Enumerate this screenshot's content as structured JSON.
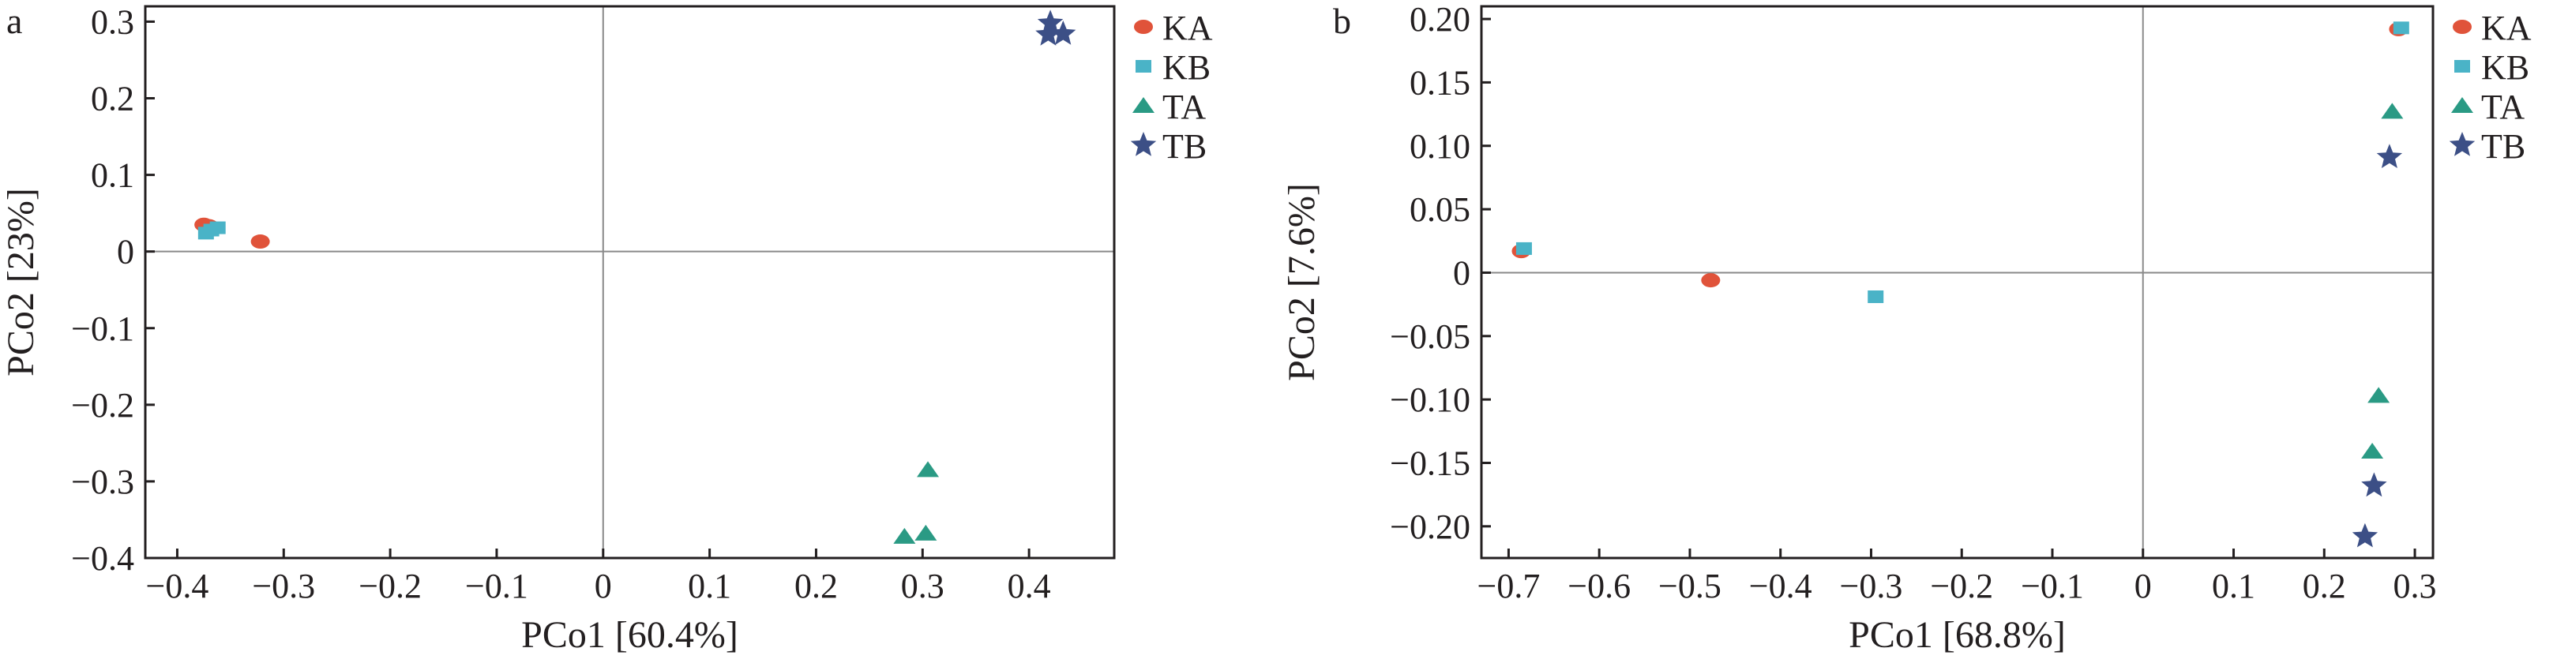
{
  "chart_data": [
    {
      "type": "scatter",
      "panel_label": "a",
      "xlabel": "PCo1 [60.4%]",
      "ylabel": "PCo2 [23%]",
      "xlim": [
        -0.43,
        0.48
      ],
      "ylim": [
        -0.4,
        0.32
      ],
      "xticks": [
        -0.4,
        -0.3,
        -0.2,
        -0.1,
        0,
        0.1,
        0.2,
        0.3,
        0.4
      ],
      "xtick_labels": [
        "-0.4",
        "-0.3",
        "-0.2",
        "-0.1",
        "0",
        "0.1",
        "0.2",
        "0.3",
        "0.4"
      ],
      "yticks": [
        0.3,
        0.2,
        0.1,
        0,
        -0.1,
        -0.2,
        -0.3,
        -0.4
      ],
      "ytick_labels": [
        "0.3",
        "0.2",
        "0.1",
        "0",
        "-0.1",
        "-0.2",
        "-0.3",
        "-0.4"
      ],
      "zero_lines": true,
      "grid": false,
      "legend_position": "outside-right-top",
      "series": [
        {
          "name": "KA",
          "marker": "circle",
          "color": "#e0533a",
          "points": [
            [
              -0.375,
              0.035
            ],
            [
              -0.37,
              0.033
            ],
            [
              -0.322,
              0.013
            ]
          ]
        },
        {
          "name": "KB",
          "marker": "square",
          "color": "#4ab3c7",
          "points": [
            [
              -0.368,
              0.028
            ],
            [
              -0.373,
              0.024
            ],
            [
              -0.362,
              0.031
            ]
          ]
        },
        {
          "name": "TA",
          "marker": "triangle",
          "color": "#2a9a84",
          "points": [
            [
              0.305,
              -0.285
            ],
            [
              0.283,
              -0.372
            ],
            [
              0.303,
              -0.368
            ]
          ]
        },
        {
          "name": "TB",
          "marker": "star",
          "color": "#3c4f86",
          "points": [
            [
              0.42,
              0.298
            ],
            [
              0.418,
              0.283
            ],
            [
              0.432,
              0.284
            ]
          ]
        }
      ]
    },
    {
      "type": "scatter",
      "panel_label": "b",
      "xlabel": "PCo1 [68.8%]",
      "ylabel": "PCo2 [7.6%]",
      "xlim": [
        -0.73,
        0.32
      ],
      "ylim": [
        -0.225,
        0.21
      ],
      "xticks": [
        -0.7,
        -0.6,
        -0.5,
        -0.4,
        -0.3,
        -0.2,
        -0.1,
        0,
        0.1,
        0.2,
        0.3
      ],
      "xtick_labels": [
        "-0.7",
        "-0.6",
        "-0.5",
        "-0.4",
        "-0.3",
        "-0.2",
        "-0.1",
        "0",
        "0.1",
        "0.2",
        "0.3"
      ],
      "yticks": [
        0.2,
        0.15,
        0.1,
        0.05,
        0,
        -0.05,
        -0.1,
        -0.15,
        -0.2
      ],
      "ytick_labels": [
        "0.20",
        "0.15",
        "0.10",
        "0.05",
        "0",
        "-0.05",
        "-0.10",
        "-0.15",
        "-0.20"
      ],
      "zero_lines": true,
      "grid": false,
      "legend_position": "outside-right-top",
      "series": [
        {
          "name": "KA",
          "marker": "circle",
          "color": "#e0533a",
          "points": [
            [
              -0.686,
              0.017
            ],
            [
              -0.477,
              -0.006
            ],
            [
              0.282,
              0.192
            ]
          ]
        },
        {
          "name": "KB",
          "marker": "square",
          "color": "#4ab3c7",
          "points": [
            [
              -0.683,
              0.019
            ],
            [
              -0.295,
              -0.019
            ],
            [
              0.285,
              0.193
            ]
          ]
        },
        {
          "name": "TA",
          "marker": "triangle",
          "color": "#2a9a84",
          "points": [
            [
              0.275,
              0.127
            ],
            [
              0.26,
              -0.097
            ],
            [
              0.253,
              -0.141
            ]
          ]
        },
        {
          "name": "TB",
          "marker": "star",
          "color": "#3c4f86",
          "points": [
            [
              0.272,
              0.091
            ],
            [
              0.255,
              -0.168
            ],
            [
              0.245,
              -0.208
            ]
          ]
        }
      ]
    }
  ]
}
